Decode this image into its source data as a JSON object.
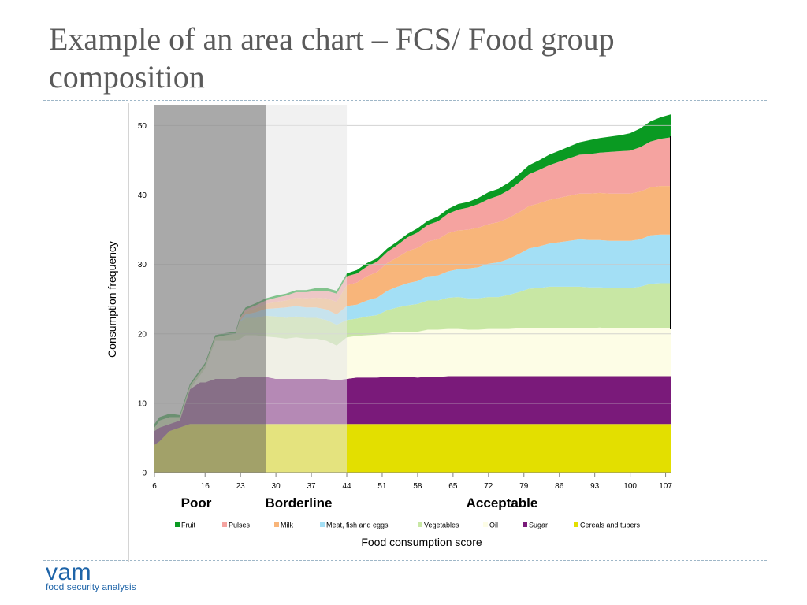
{
  "slide": {
    "title": "Example of an area chart – FCS/ Food group composition"
  },
  "logo": {
    "main": "vam",
    "sub": "food security analysis"
  },
  "colors": {
    "fruit": "#0a9a22",
    "pulses": "#f5a3a0",
    "milk": "#f8b57a",
    "meat": "#a3dff5",
    "vegetables": "#c8e7a4",
    "oil": "#fdfde6",
    "sugar": "#7a1a7a",
    "cereals": "#e3df00",
    "poor_band": "#8c8c8c",
    "borderline_band": "#e6e6e6",
    "gridline": "#c8c8c8"
  },
  "chart_data": {
    "type": "area",
    "stacked": true,
    "xlabel": "Food consumption score",
    "ylabel": "Consumption frequency",
    "xlim": [
      6,
      108
    ],
    "ylim": [
      0,
      53
    ],
    "x_ticks": [
      6,
      16,
      23,
      30,
      37,
      44,
      51,
      58,
      65,
      72,
      79,
      86,
      93,
      100,
      107
    ],
    "y_ticks": [
      0,
      10,
      20,
      30,
      40,
      50
    ],
    "grid": true,
    "legend_position": "bottom",
    "x": [
      6,
      7,
      9,
      11,
      13,
      15,
      16,
      18,
      20,
      22,
      23,
      24,
      26,
      28,
      30,
      32,
      34,
      36,
      38,
      40,
      42,
      44,
      46,
      48,
      50,
      52,
      54,
      56,
      58,
      60,
      62,
      64,
      66,
      68,
      70,
      72,
      74,
      76,
      78,
      80,
      82,
      84,
      86,
      88,
      90,
      92,
      94,
      96,
      98,
      100,
      102,
      104,
      106,
      108
    ],
    "series": [
      {
        "name": "Cereals and tubers",
        "color_key": "cereals",
        "values": [
          4,
          4.5,
          6,
          6.5,
          7,
          7,
          7,
          7,
          7,
          7,
          7,
          7,
          7,
          7,
          7,
          7,
          7,
          7,
          7,
          7,
          7,
          7,
          7,
          7,
          7,
          7,
          7,
          7,
          7,
          7,
          7,
          7,
          7,
          7,
          7,
          7,
          7,
          7,
          7,
          7,
          7,
          7,
          7,
          7,
          7,
          7,
          7,
          7,
          7,
          7,
          7,
          7,
          7,
          7
        ]
      },
      {
        "name": "Sugar",
        "color_key": "sugar",
        "values": [
          2,
          2,
          1,
          1,
          5,
          6,
          6,
          6.5,
          6.5,
          6.5,
          6.8,
          6.8,
          6.8,
          6.8,
          6.5,
          6.5,
          6.5,
          6.5,
          6.5,
          6.5,
          6.3,
          6.5,
          6.7,
          6.7,
          6.7,
          6.8,
          6.8,
          6.8,
          6.7,
          6.8,
          6.8,
          6.9,
          6.9,
          6.9,
          6.9,
          6.9,
          6.9,
          6.9,
          6.9,
          6.9,
          6.9,
          6.9,
          6.9,
          6.9,
          6.9,
          6.9,
          6.9,
          6.9,
          6.9,
          6.9,
          6.9,
          6.9,
          6.9,
          6.9
        ]
      },
      {
        "name": "Oil",
        "color_key": "oil",
        "values": [
          0,
          0,
          0,
          0,
          0,
          1,
          2,
          5.5,
          5.5,
          5.5,
          5.5,
          6,
          6,
          5.8,
          6,
          5.8,
          6,
          5.8,
          5.8,
          5.5,
          5,
          6,
          6,
          6.1,
          6.2,
          6.3,
          6.5,
          6.5,
          6.6,
          6.8,
          6.8,
          6.8,
          6.8,
          6.7,
          6.7,
          6.8,
          6.8,
          6.8,
          6.9,
          6.9,
          6.9,
          6.9,
          6.9,
          6.9,
          6.9,
          6.9,
          7,
          6.9,
          6.9,
          6.9,
          6.9,
          6.9,
          6.9,
          6.9
        ]
      },
      {
        "name": "Vegetables",
        "color_key": "vegetables",
        "values": [
          0.5,
          1,
          1,
          0.5,
          0.5,
          0.5,
          0.5,
          0.5,
          0.8,
          1,
          2.5,
          2.5,
          2.5,
          3,
          3,
          3,
          3,
          3,
          3,
          3,
          3,
          2.5,
          2.5,
          2.7,
          2.8,
          3.3,
          3.5,
          3.8,
          4,
          4.2,
          4.2,
          4.5,
          4.6,
          4.5,
          4.5,
          4.6,
          4.6,
          4.9,
          5.2,
          5.7,
          5.8,
          6,
          6,
          6,
          6,
          5.9,
          5.8,
          5.8,
          5.8,
          5.8,
          6,
          6.4,
          6.5,
          6.5
        ]
      },
      {
        "name": "Meat, fish and eggs",
        "color_key": "meat",
        "values": [
          0,
          0,
          0,
          0,
          0,
          0,
          0,
          0,
          0,
          0,
          0.2,
          0.5,
          0.8,
          1,
          1.2,
          1.5,
          1.5,
          1.5,
          1.5,
          1.5,
          1.5,
          2,
          2,
          2.3,
          2.5,
          2.8,
          3,
          3.2,
          3.3,
          3.5,
          3.6,
          3.8,
          4,
          4.3,
          4.5,
          4.8,
          5,
          5.2,
          5.5,
          5.8,
          6,
          6.2,
          6.4,
          6.6,
          6.8,
          6.8,
          6.8,
          6.8,
          6.8,
          6.8,
          6.8,
          7,
          7,
          7
        ]
      },
      {
        "name": "Milk",
        "color_key": "milk",
        "values": [
          0,
          0,
          0,
          0,
          0,
          0,
          0,
          0,
          0,
          0,
          0.2,
          0.4,
          0.6,
          0.7,
          0.9,
          1,
          1.2,
          1.3,
          1.4,
          1.6,
          1.8,
          3,
          3.2,
          3.5,
          3.7,
          4,
          4.2,
          4.6,
          4.8,
          5,
          5.2,
          5.5,
          5.6,
          5.6,
          5.7,
          5.7,
          5.8,
          5.9,
          6,
          6.1,
          6.2,
          6.3,
          6.4,
          6.5,
          6.6,
          6.7,
          6.8,
          6.8,
          6.8,
          6.8,
          6.9,
          6.9,
          7,
          7
        ]
      },
      {
        "name": "Pulses",
        "color_key": "pulses",
        "values": [
          0,
          0,
          0,
          0,
          0,
          0,
          0,
          0,
          0,
          0,
          0.2,
          0.3,
          0.4,
          0.5,
          0.6,
          0.7,
          0.8,
          0.9,
          1,
          1.1,
          1.2,
          1.3,
          1.3,
          1.4,
          1.5,
          1.6,
          1.8,
          2,
          2.2,
          2.4,
          2.6,
          2.8,
          3,
          3.2,
          3.4,
          3.6,
          3.8,
          4,
          4.3,
          4.6,
          4.8,
          5,
          5.2,
          5.4,
          5.6,
          5.7,
          5.8,
          6,
          6.1,
          6.2,
          6.4,
          6.6,
          6.8,
          7
        ]
      },
      {
        "name": "Fruit",
        "color_key": "fruit",
        "values": [
          0.5,
          0.5,
          0.5,
          0.3,
          0.3,
          0.3,
          0.3,
          0.3,
          0.3,
          0.3,
          0.3,
          0.3,
          0.3,
          0.3,
          0.3,
          0.3,
          0.3,
          0.3,
          0.4,
          0.4,
          0.4,
          0.4,
          0.5,
          0.5,
          0.5,
          0.5,
          0.5,
          0.5,
          0.6,
          0.6,
          0.7,
          0.7,
          0.8,
          0.8,
          0.9,
          1,
          1,
          1.1,
          1.2,
          1.3,
          1.4,
          1.5,
          1.6,
          1.7,
          1.8,
          2,
          2.1,
          2.2,
          2.3,
          2.5,
          2.7,
          2.9,
          3.1,
          3.3
        ]
      }
    ],
    "bands": [
      {
        "label": "Poor",
        "from": 6,
        "to": 28,
        "color_key": "poor_band",
        "opacity": 0.75
      },
      {
        "label": "Borderline",
        "from": 28,
        "to": 44,
        "color_key": "borderline_band",
        "opacity": 0.55
      },
      {
        "label": "Acceptable",
        "from": 44,
        "to": 108
      }
    ]
  }
}
